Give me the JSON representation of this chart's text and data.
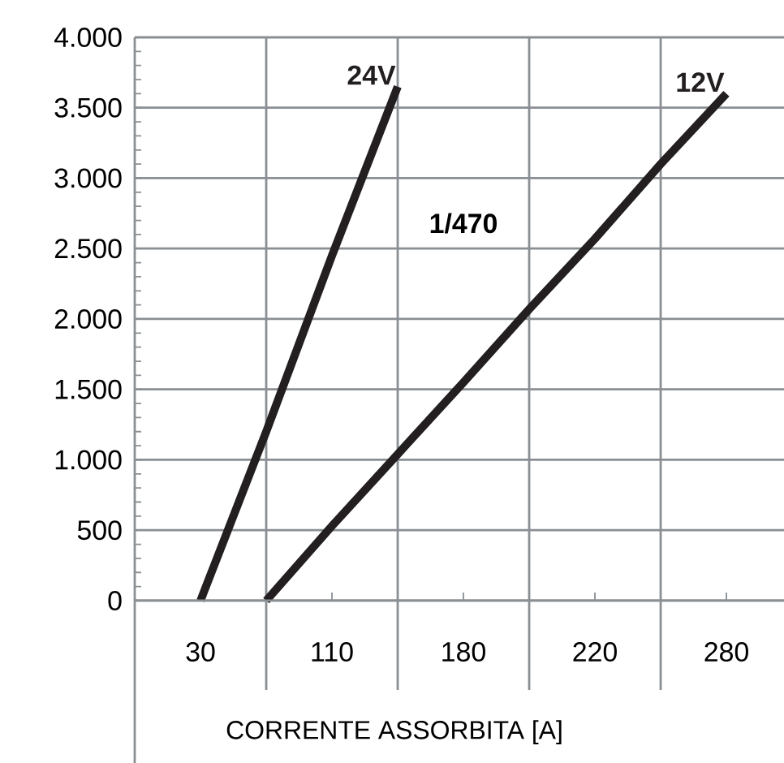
{
  "chart_data": {
    "type": "line",
    "xlabel": "CORRENTE ASSORBITA [A]",
    "categories": [
      "30",
      null,
      "110",
      null,
      "180",
      null,
      "220",
      null,
      "280"
    ],
    "ylim": [
      0,
      4000
    ],
    "yticks": [
      0,
      500,
      {
        "value": 1000,
        "label": "1.000"
      },
      {
        "value": 1500,
        "label": "1.500"
      },
      {
        "value": 2000,
        "label": "2.000"
      },
      {
        "value": 2500,
        "label": "2.500"
      },
      {
        "value": 3000,
        "label": "3.000"
      },
      {
        "value": 3500,
        "label": "3.500"
      },
      {
        "value": 4000,
        "label": "4.000"
      }
    ],
    "grid": true,
    "marker": "none",
    "annotations": [
      "1/470"
    ],
    "series": [
      {
        "name": "24V",
        "color": "#231f20",
        "values": [
          0,
          1200,
          2450,
          3650,
          null,
          null,
          null,
          null,
          null
        ]
      },
      {
        "name": "12V",
        "color": "#231f20",
        "values": [
          null,
          0,
          530,
          1040,
          1550,
          2070,
          2570,
          3100,
          3600
        ]
      }
    ]
  }
}
